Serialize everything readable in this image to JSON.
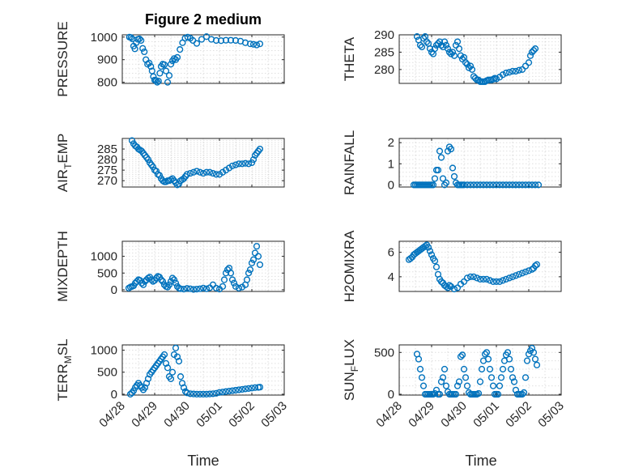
{
  "figure": {
    "title": "Figure 2 medium",
    "xlabel": "Time",
    "x_ticks": [
      "04/28",
      "04/29",
      "04/30",
      "05/01",
      "05/02",
      "05/03"
    ],
    "marker_color": "#0072BD"
  },
  "chart_data": [
    {
      "type": "scatter",
      "title": "Figure 2 medium",
      "ylabel": "PRESSURE",
      "xlim": [
        0,
        5
      ],
      "ylim": [
        795,
        1010
      ],
      "yticks": [
        800,
        900,
        1000
      ],
      "grid": true,
      "x": [
        0.22,
        0.27,
        0.31,
        0.35,
        0.39,
        0.43,
        0.48,
        0.53,
        0.58,
        0.63,
        0.68,
        0.73,
        0.78,
        0.83,
        0.88,
        0.92,
        0.96,
        1.0,
        1.04,
        1.08,
        1.12,
        1.16,
        1.2,
        1.25,
        1.3,
        1.35,
        1.4,
        1.45,
        1.5,
        1.55,
        1.6,
        1.65,
        1.7,
        1.78,
        1.86,
        1.94,
        2.02,
        2.1,
        2.18,
        2.3,
        2.45,
        2.6,
        2.75,
        2.9,
        3.05,
        3.2,
        3.35,
        3.5,
        3.65,
        3.8,
        3.95,
        4.05,
        4.15,
        4.25
      ],
      "y": [
        1000,
        998,
        992,
        960,
        948,
        975,
        990,
        992,
        985,
        950,
        935,
        900,
        880,
        885,
        870,
        850,
        825,
        810,
        808,
        800,
        805,
        840,
        870,
        880,
        878,
        850,
        800,
        830,
        880,
        895,
        905,
        900,
        910,
        945,
        975,
        995,
        1000,
        995,
        985,
        972,
        990,
        1002,
        990,
        985,
        984,
        986,
        986,
        985,
        982,
        975,
        970,
        968,
        965,
        970
      ]
    },
    {
      "type": "scatter",
      "ylabel": "THETA",
      "xlim": [
        0,
        5
      ],
      "ylim": [
        276,
        290
      ],
      "yticks": [
        280,
        285,
        290
      ],
      "grid": true,
      "x": [
        0.55,
        0.6,
        0.65,
        0.7,
        0.75,
        0.8,
        0.85,
        0.9,
        0.95,
        1.0,
        1.05,
        1.1,
        1.15,
        1.2,
        1.25,
        1.3,
        1.35,
        1.4,
        1.45,
        1.5,
        1.55,
        1.6,
        1.65,
        1.7,
        1.75,
        1.8,
        1.85,
        1.9,
        1.95,
        2.0,
        2.05,
        2.1,
        2.15,
        2.2,
        2.25,
        2.3,
        2.35,
        2.4,
        2.45,
        2.5,
        2.55,
        2.6,
        2.65,
        2.7,
        2.75,
        2.8,
        2.85,
        2.9,
        2.95,
        3.0,
        3.1,
        3.2,
        3.3,
        3.4,
        3.5,
        3.6,
        3.7,
        3.8,
        3.9,
        4.0,
        4.05,
        4.1,
        4.15,
        4.2
      ],
      "y": [
        289.5,
        288.5,
        287,
        286.5,
        289,
        289.5,
        288,
        287.5,
        286,
        285,
        284.5,
        286,
        287,
        287.5,
        288,
        287,
        286.5,
        288,
        287,
        286,
        285,
        284.5,
        285,
        284,
        287,
        288,
        286,
        284,
        283,
        283.5,
        282,
        281.5,
        280.5,
        281,
        280,
        278,
        277.5,
        277,
        277,
        276.5,
        276.5,
        276.5,
        276.5,
        276.8,
        277,
        277,
        277,
        277.2,
        277.5,
        277.3,
        277.8,
        278.5,
        279,
        279.2,
        279.5,
        279.5,
        279.8,
        280,
        281,
        282,
        284,
        285,
        285.5,
        286
      ]
    },
    {
      "type": "scatter",
      "ylabel": "AIR_TEMP",
      "xlim": [
        0,
        5
      ],
      "ylim": [
        267,
        290
      ],
      "yticks": [
        270,
        275,
        280,
        285
      ],
      "grid": true,
      "x": [
        0.3,
        0.35,
        0.4,
        0.45,
        0.5,
        0.55,
        0.6,
        0.65,
        0.7,
        0.75,
        0.8,
        0.85,
        0.9,
        0.95,
        1.0,
        1.05,
        1.1,
        1.15,
        1.2,
        1.25,
        1.3,
        1.35,
        1.4,
        1.45,
        1.5,
        1.55,
        1.6,
        1.65,
        1.7,
        1.75,
        1.8,
        1.85,
        1.9,
        1.95,
        2.0,
        2.1,
        2.2,
        2.3,
        2.4,
        2.5,
        2.6,
        2.7,
        2.8,
        2.9,
        3.0,
        3.1,
        3.2,
        3.3,
        3.4,
        3.5,
        3.6,
        3.7,
        3.8,
        3.9,
        4.0,
        4.05,
        4.1,
        4.15,
        4.2,
        4.25
      ],
      "y": [
        289,
        287.5,
        286.5,
        286,
        285,
        284.5,
        284,
        283,
        282,
        281,
        280,
        278.5,
        277.5,
        276.5,
        275,
        274.5,
        273,
        272.5,
        271,
        270,
        269.5,
        269.5,
        270,
        270,
        270.5,
        271,
        270,
        269,
        268,
        268.5,
        270,
        270.5,
        271,
        272,
        273,
        273.5,
        274,
        274.5,
        274,
        273.5,
        274,
        274,
        273.5,
        273,
        273,
        274,
        275,
        276,
        277,
        277.5,
        278,
        278,
        278.2,
        278,
        278.5,
        280,
        282,
        283,
        284,
        285
      ]
    },
    {
      "type": "scatter",
      "ylabel": "RAINFALL",
      "xlim": [
        0,
        5
      ],
      "ylim": [
        -0.1,
        2.2
      ],
      "yticks": [
        0,
        1,
        2
      ],
      "grid": true,
      "x": [
        0.45,
        0.5,
        0.55,
        0.6,
        0.65,
        0.7,
        0.75,
        0.8,
        0.85,
        0.9,
        0.95,
        1.0,
        1.05,
        1.1,
        1.15,
        1.2,
        1.25,
        1.3,
        1.35,
        1.4,
        1.45,
        1.5,
        1.55,
        1.6,
        1.65,
        1.7,
        1.75,
        1.8,
        1.85,
        1.9,
        1.95,
        2.0,
        2.1,
        2.2,
        2.3,
        2.4,
        2.5,
        2.6,
        2.7,
        2.8,
        2.9,
        3.0,
        3.1,
        3.2,
        3.3,
        3.4,
        3.5,
        3.6,
        3.7,
        3.8,
        3.9,
        4.0,
        4.1,
        4.2,
        4.3
      ],
      "y": [
        0,
        0,
        0,
        0,
        0,
        0,
        0,
        0,
        0,
        0,
        0,
        0,
        0,
        0.3,
        0.7,
        0.7,
        1.6,
        1.3,
        0.3,
        0,
        0.1,
        1.6,
        1.8,
        1.7,
        0.8,
        0.4,
        0.1,
        0,
        0,
        0,
        0,
        0,
        0,
        0,
        0,
        0,
        0,
        0,
        0,
        0,
        0,
        0,
        0,
        0,
        0,
        0,
        0,
        0,
        0,
        0,
        0,
        0,
        0,
        0,
        0
      ]
    },
    {
      "type": "scatter",
      "ylabel": "MIXDEPTH",
      "xlim": [
        0,
        5
      ],
      "ylim": [
        -50,
        1450
      ],
      "yticks": [
        0,
        500,
        1000
      ],
      "grid": true,
      "x": [
        0.2,
        0.25,
        0.3,
        0.35,
        0.4,
        0.45,
        0.5,
        0.55,
        0.6,
        0.65,
        0.7,
        0.75,
        0.8,
        0.85,
        0.9,
        0.95,
        1.0,
        1.05,
        1.1,
        1.15,
        1.2,
        1.25,
        1.3,
        1.35,
        1.4,
        1.45,
        1.5,
        1.55,
        1.6,
        1.65,
        1.7,
        1.75,
        1.8,
        1.9,
        2.0,
        2.1,
        2.2,
        2.3,
        2.4,
        2.5,
        2.6,
        2.7,
        2.8,
        2.9,
        3.0,
        3.1,
        3.15,
        3.2,
        3.25,
        3.3,
        3.35,
        3.4,
        3.45,
        3.5,
        3.6,
        3.7,
        3.8,
        3.85,
        3.9,
        3.95,
        4.0,
        4.05,
        4.1,
        4.15,
        4.2,
        4.25
      ],
      "y": [
        50,
        80,
        100,
        120,
        200,
        250,
        300,
        280,
        200,
        150,
        250,
        300,
        350,
        380,
        300,
        250,
        280,
        350,
        400,
        380,
        300,
        250,
        150,
        100,
        80,
        150,
        250,
        350,
        300,
        200,
        100,
        50,
        30,
        20,
        40,
        30,
        10,
        20,
        30,
        50,
        30,
        60,
        150,
        50,
        20,
        100,
        300,
        500,
        600,
        650,
        500,
        300,
        200,
        100,
        50,
        80,
        150,
        300,
        500,
        600,
        800,
        900,
        1100,
        1300,
        1000,
        750
      ]
    },
    {
      "type": "scatter",
      "ylabel": "H2OMIXRA",
      "xlim": [
        0,
        5
      ],
      "ylim": [
        2.8,
        6.9
      ],
      "yticks": [
        4,
        6
      ],
      "grid": true,
      "x": [
        0.3,
        0.35,
        0.4,
        0.45,
        0.5,
        0.55,
        0.6,
        0.65,
        0.7,
        0.75,
        0.8,
        0.85,
        0.9,
        0.95,
        1.0,
        1.05,
        1.1,
        1.15,
        1.2,
        1.25,
        1.3,
        1.35,
        1.4,
        1.45,
        1.5,
        1.55,
        1.6,
        1.7,
        1.8,
        1.9,
        2.0,
        2.1,
        2.2,
        2.3,
        2.4,
        2.5,
        2.6,
        2.7,
        2.8,
        2.9,
        3.0,
        3.1,
        3.2,
        3.3,
        3.4,
        3.5,
        3.6,
        3.7,
        3.8,
        3.9,
        4.0,
        4.1,
        4.15,
        4.2,
        4.25
      ],
      "y": [
        5.4,
        5.5,
        5.6,
        5.8,
        5.9,
        6.0,
        6.1,
        6.2,
        6.3,
        6.4,
        6.5,
        6.6,
        6.4,
        6.1,
        5.8,
        5.5,
        5.3,
        4.8,
        4.2,
        3.8,
        3.6,
        3.5,
        3.3,
        3.2,
        3.1,
        3.3,
        3.2,
        3.0,
        3.1,
        3.4,
        3.6,
        3.9,
        4.0,
        4.0,
        3.9,
        3.8,
        3.8,
        3.8,
        3.7,
        3.6,
        3.6,
        3.6,
        3.7,
        3.8,
        3.9,
        4.0,
        4.1,
        4.2,
        4.3,
        4.4,
        4.5,
        4.6,
        4.7,
        4.9,
        5.0
      ]
    },
    {
      "type": "scatter",
      "ylabel": "TERR_MSL",
      "xlim": [
        0,
        5
      ],
      "ylim": [
        -20,
        1120
      ],
      "yticks": [
        0,
        500,
        1000
      ],
      "grid": true,
      "x": [
        0.25,
        0.3,
        0.35,
        0.4,
        0.45,
        0.5,
        0.55,
        0.6,
        0.65,
        0.7,
        0.75,
        0.8,
        0.85,
        0.9,
        0.95,
        1.0,
        1.05,
        1.1,
        1.15,
        1.2,
        1.25,
        1.3,
        1.35,
        1.4,
        1.45,
        1.5,
        1.55,
        1.6,
        1.65,
        1.7,
        1.75,
        1.8,
        1.85,
        1.9,
        1.95,
        2.0,
        2.1,
        2.2,
        2.3,
        2.4,
        2.5,
        2.6,
        2.7,
        2.8,
        2.9,
        3.0,
        3.1,
        3.2,
        3.3,
        3.4,
        3.5,
        3.6,
        3.7,
        3.8,
        3.9,
        4.0,
        4.1,
        4.2,
        4.25
      ],
      "y": [
        0,
        30,
        80,
        150,
        200,
        250,
        200,
        150,
        100,
        150,
        250,
        350,
        450,
        500,
        550,
        600,
        650,
        700,
        750,
        800,
        850,
        900,
        700,
        600,
        400,
        350,
        500,
        900,
        1050,
        850,
        750,
        400,
        250,
        150,
        60,
        30,
        10,
        5,
        0,
        0,
        0,
        0,
        5,
        10,
        20,
        40,
        50,
        60,
        70,
        80,
        90,
        100,
        110,
        120,
        130,
        140,
        150,
        155,
        160
      ]
    },
    {
      "type": "scatter",
      "ylabel": "SUN_FLUX",
      "xlim": [
        0,
        5
      ],
      "ylim": [
        -10,
        590
      ],
      "yticks": [
        0,
        500
      ],
      "grid": true,
      "x": [
        0.55,
        0.6,
        0.65,
        0.7,
        0.75,
        0.8,
        0.85,
        0.9,
        0.95,
        1.0,
        1.05,
        1.1,
        1.15,
        1.2,
        1.25,
        1.3,
        1.35,
        1.4,
        1.45,
        1.5,
        1.55,
        1.6,
        1.65,
        1.7,
        1.75,
        1.8,
        1.85,
        1.9,
        1.95,
        2.0,
        2.05,
        2.1,
        2.15,
        2.2,
        2.25,
        2.3,
        2.35,
        2.4,
        2.45,
        2.5,
        2.55,
        2.6,
        2.65,
        2.7,
        2.75,
        2.8,
        2.85,
        2.9,
        2.95,
        3.0,
        3.05,
        3.1,
        3.15,
        3.2,
        3.25,
        3.3,
        3.35,
        3.4,
        3.45,
        3.5,
        3.55,
        3.6,
        3.65,
        3.7,
        3.75,
        3.8,
        3.85,
        3.9,
        3.95,
        4.0,
        4.05,
        4.1,
        4.15,
        4.2,
        4.25
      ],
      "y": [
        480,
        420,
        300,
        200,
        100,
        0,
        0,
        0,
        0,
        0,
        0,
        10,
        50,
        0,
        0,
        150,
        200,
        300,
        100,
        30,
        0,
        0,
        0,
        0,
        0,
        100,
        150,
        450,
        470,
        300,
        200,
        100,
        20,
        0,
        0,
        0,
        0,
        0,
        10,
        150,
        300,
        400,
        480,
        500,
        420,
        300,
        200,
        100,
        0,
        0,
        0,
        100,
        200,
        300,
        400,
        470,
        500,
        420,
        300,
        200,
        150,
        50,
        0,
        0,
        0,
        0,
        20,
        200,
        400,
        480,
        520,
        550,
        500,
        420,
        350
      ]
    }
  ]
}
